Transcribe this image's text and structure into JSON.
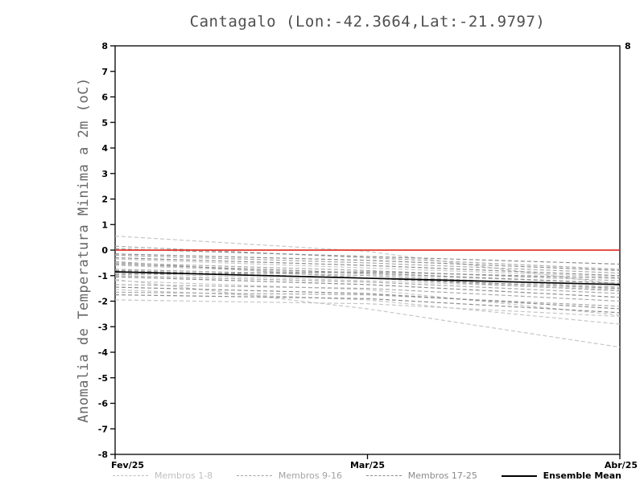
{
  "page": {
    "background": "#ffffff"
  },
  "chart_data": {
    "type": "line",
    "title": "Cantagalo (Lon:-42.3664,Lat:-21.9797)",
    "ylabel": "Anomalia de Temperatura Minima a 2m (oC)",
    "xlabel": "",
    "ylim": [
      -8,
      8
    ],
    "ytick_step": 1,
    "y_ticks": [
      "8",
      "7",
      "6",
      "5",
      "4",
      "3",
      "2",
      "1",
      "0",
      "-1",
      "-2",
      "-3",
      "-4",
      "-5",
      "-6",
      "-7",
      "-8"
    ],
    "x_ticks": [
      "Fev/25",
      "Mar/25",
      "Abr/25"
    ],
    "x": [
      0,
      0.5,
      1
    ],
    "grid": false,
    "right_axis_top_label": "8",
    "reference_line": {
      "name": "zero-anomaly-line",
      "value": 0,
      "color": "#e0392b"
    },
    "groups": [
      {
        "name": "Membros 1-8",
        "color": "#c6c6c6",
        "dash": "5,3"
      },
      {
        "name": "Membros 9-16",
        "color": "#a9a9a9",
        "dash": "5,3"
      },
      {
        "name": "Membros 17-25",
        "color": "#8d8d8d",
        "dash": "5,3"
      }
    ],
    "members": [
      {
        "group": 0,
        "values": [
          0.55,
          -0.05,
          -1.35
        ]
      },
      {
        "group": 0,
        "values": [
          -0.35,
          -0.7,
          -1.05
        ]
      },
      {
        "group": 0,
        "values": [
          -0.9,
          -1.2,
          -1.55
        ]
      },
      {
        "group": 0,
        "values": [
          -1.2,
          -1.55,
          -2.55
        ]
      },
      {
        "group": 0,
        "values": [
          -1.55,
          -1.95,
          -2.9
        ]
      },
      {
        "group": 0,
        "values": [
          -1.15,
          -2.3,
          -3.8
        ]
      },
      {
        "group": 0,
        "values": [
          -1.95,
          -2.1,
          -2.6
        ]
      },
      {
        "group": 0,
        "values": [
          -0.6,
          -0.95,
          -1.3
        ]
      },
      {
        "group": 1,
        "values": [
          0.15,
          -0.3,
          -0.75
        ]
      },
      {
        "group": 1,
        "values": [
          -0.2,
          -0.5,
          -0.9
        ]
      },
      {
        "group": 1,
        "values": [
          -0.5,
          -0.8,
          -1.2
        ]
      },
      {
        "group": 1,
        "values": [
          -0.75,
          -1.0,
          -1.45
        ]
      },
      {
        "group": 1,
        "values": [
          -1.0,
          -1.25,
          -1.7
        ]
      },
      {
        "group": 1,
        "values": [
          -1.35,
          -1.5,
          -2.0
        ]
      },
      {
        "group": 1,
        "values": [
          -1.65,
          -1.75,
          -2.2
        ]
      },
      {
        "group": 1,
        "values": [
          -0.45,
          -1.1,
          -1.6
        ]
      },
      {
        "group": 2,
        "values": [
          0.05,
          -0.25,
          -0.55
        ]
      },
      {
        "group": 2,
        "values": [
          -0.3,
          -0.6,
          -1.0
        ]
      },
      {
        "group": 2,
        "values": [
          -0.55,
          -0.9,
          -1.3
        ]
      },
      {
        "group": 2,
        "values": [
          -0.8,
          -1.1,
          -1.5
        ]
      },
      {
        "group": 2,
        "values": [
          -1.05,
          -1.35,
          -1.85
        ]
      },
      {
        "group": 2,
        "values": [
          -1.45,
          -1.7,
          -2.3
        ]
      },
      {
        "group": 2,
        "values": [
          -1.75,
          -1.9,
          -2.45
        ]
      },
      {
        "group": 2,
        "values": [
          -0.95,
          -0.85,
          -1.1
        ]
      },
      {
        "group": 2,
        "values": [
          -0.15,
          -0.4,
          -0.8
        ]
      }
    ],
    "ensemble_mean": {
      "name": "Ensemble Mean",
      "color": "#000000",
      "values": [
        -0.85,
        -1.1,
        -1.35
      ]
    },
    "legend": [
      {
        "label": "Membros 1-8",
        "color": "#bfbfbf",
        "style": "dashed"
      },
      {
        "label": "Membros 9-16",
        "color": "#a3a3a3",
        "style": "dashed"
      },
      {
        "label": "Membros 17-25",
        "color": "#8a8a8a",
        "style": "dashed"
      },
      {
        "label": "Ensemble Mean",
        "color": "#000000",
        "style": "solid"
      }
    ]
  }
}
